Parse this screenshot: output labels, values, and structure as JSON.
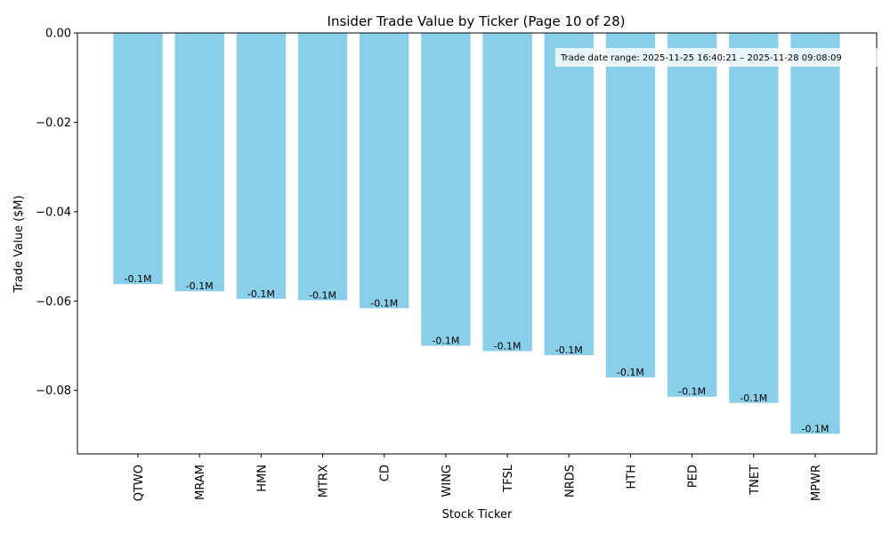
{
  "chart_data": {
    "type": "bar",
    "title": "Insider Trade Value by Ticker (Page 10 of 28)",
    "xlabel": "Stock Ticker",
    "ylabel": "Trade Value ($M)",
    "categories": [
      "QTWO",
      "MRAM",
      "HMN",
      "MTRX",
      "CD",
      "WING",
      "TFSL",
      "NRDS",
      "HTH",
      "PED",
      "TNET",
      "MPWR"
    ],
    "values": [
      -0.0562,
      -0.0578,
      -0.0595,
      -0.0598,
      -0.0616,
      -0.07,
      -0.0712,
      -0.0721,
      -0.0771,
      -0.0814,
      -0.0828,
      -0.0897
    ],
    "data_labels": [
      "-0.1M",
      "-0.1M",
      "-0.1M",
      "-0.1M",
      "-0.1M",
      "-0.1M",
      "-0.1M",
      "-0.1M",
      "-0.1M",
      "-0.1M",
      "-0.1M",
      "-0.1M"
    ],
    "ylim": [
      -0.0942,
      0.0
    ],
    "yticks": [
      0.0,
      -0.02,
      -0.04,
      -0.06,
      -0.08
    ],
    "ytick_labels": [
      "0.00",
      "−0.02",
      "−0.04",
      "−0.06",
      "−0.08"
    ],
    "bar_color": "#89CFE9",
    "grid": false,
    "annotation": "Trade date range: 2025-11-25 16:40:21 – 2025-11-28 09:08:09",
    "annotation_position": "top-right"
  }
}
